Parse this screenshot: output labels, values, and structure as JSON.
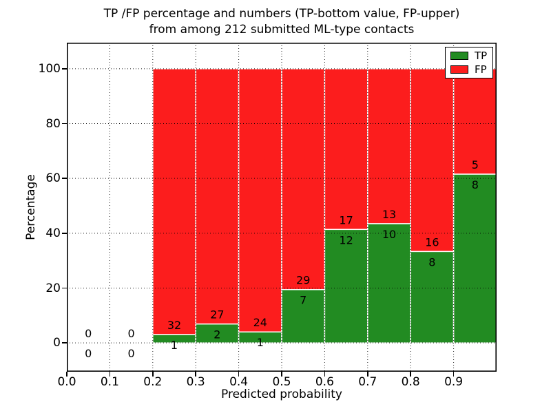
{
  "chart_data": {
    "type": "bar",
    "stacked": true,
    "normalized_to_100_percent": true,
    "title_lines": [
      "TP /FP percentage and numbers (TP-bottom value, FP-upper)",
      "from among 212 submitted ML-type contacts"
    ],
    "title": "TP /FP percentage and numbers (TP-bottom value, FP-upper)\nfrom among 212 submitted ML-type contacts",
    "xlabel": "Predicted probability",
    "ylabel": "Percentage",
    "xlim": [
      0.0,
      1.0
    ],
    "ylim": [
      -10.5,
      109.5
    ],
    "xticks": {
      "values": [
        0.0,
        0.1,
        0.2,
        0.3,
        0.4,
        0.5,
        0.6,
        0.7,
        0.8,
        0.9
      ],
      "labels": [
        "0.0",
        "0.1",
        "0.2",
        "0.3",
        "0.4",
        "0.5",
        "0.6",
        "0.7",
        "0.8",
        "0.9"
      ]
    },
    "yticks": {
      "values": [
        0,
        20,
        40,
        60,
        80,
        100
      ],
      "labels": [
        "0",
        "20",
        "40",
        "60",
        "80",
        "100"
      ]
    },
    "grid": {
      "style": "dotted",
      "color": "#000000"
    },
    "bar_edge_color": "#ffffff",
    "legend": {
      "position": "upper-right",
      "entries": [
        {
          "label": "TP",
          "color": "#228b22"
        },
        {
          "label": "FP",
          "color": "#fc1d1d"
        }
      ]
    },
    "series": [
      {
        "name": "TP",
        "color": "#228b22",
        "counts": [
          0,
          0,
          1,
          2,
          1,
          7,
          12,
          10,
          8,
          8
        ]
      },
      {
        "name": "FP",
        "color": "#fc1d1d",
        "counts": [
          0,
          0,
          32,
          27,
          24,
          29,
          17,
          13,
          16,
          5
        ]
      }
    ],
    "bins": [
      {
        "x_start": 0.0,
        "x_end": 0.1,
        "tp": 0,
        "fp": 0
      },
      {
        "x_start": 0.1,
        "x_end": 0.2,
        "tp": 0,
        "fp": 0
      },
      {
        "x_start": 0.2,
        "x_end": 0.3,
        "tp": 1,
        "fp": 32
      },
      {
        "x_start": 0.3,
        "x_end": 0.4,
        "tp": 2,
        "fp": 27
      },
      {
        "x_start": 0.4,
        "x_end": 0.5,
        "tp": 1,
        "fp": 24
      },
      {
        "x_start": 0.5,
        "x_end": 0.6,
        "tp": 7,
        "fp": 29
      },
      {
        "x_start": 0.6,
        "x_end": 0.7,
        "tp": 12,
        "fp": 17
      },
      {
        "x_start": 0.7,
        "x_end": 0.8,
        "tp": 10,
        "fp": 13
      },
      {
        "x_start": 0.8,
        "x_end": 0.9,
        "tp": 8,
        "fp": 16
      },
      {
        "x_start": 0.9,
        "x_end": 1.0,
        "tp": 8,
        "fp": 5
      }
    ]
  }
}
